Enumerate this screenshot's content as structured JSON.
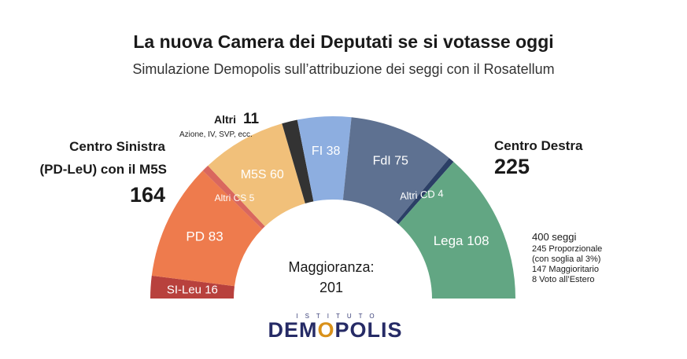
{
  "title": "La nuova Camera dei Deputati se si votasse oggi",
  "subtitle": "Simulazione Demopolis sull’attribuzione dei seggi con il Rosatellum",
  "blocks": {
    "left": {
      "line1": "Centro Sinistra",
      "line2": "(PD-LeU) con il M5S",
      "total": "164"
    },
    "right": {
      "line1": "Centro Destra",
      "total": "225"
    },
    "altri": {
      "label": "Altri",
      "total": "11",
      "note": "Azione, IV, SVP, ecc."
    }
  },
  "majority": {
    "label": "Maggioranza:",
    "value": "201"
  },
  "info": {
    "total": "400 seggi",
    "lines": [
      "245 Proporzionale",
      "(con soglia al 3%)",
      "147 Maggioritario",
      "8 Voto all’Estero"
    ]
  },
  "logo": {
    "top": "ISTITUTO",
    "pre": "DEM",
    "o": "O",
    "post": "POLIS"
  },
  "chart_data": {
    "type": "pie",
    "subtype": "parliament-semicircle",
    "title": "La nuova Camera dei Deputati se si votasse oggi",
    "subtitle": "Simulazione Demopolis sull’attribuzione dei seggi con il Rosatellum",
    "total_seats": 400,
    "segments": [
      {
        "label": "SI-Leu",
        "value": 16,
        "display": "SI-Leu  16",
        "color": "#b8413d",
        "group": "Centro Sinistra"
      },
      {
        "label": "PD",
        "value": 83,
        "display": "PD 83",
        "color": "#ee7b4d",
        "group": "Centro Sinistra"
      },
      {
        "label": "Altri CS",
        "value": 5,
        "display": "Altri CS 5",
        "color": "#d9675e",
        "group": "Centro Sinistra"
      },
      {
        "label": "M5S",
        "value": 60,
        "display": "M5S  60",
        "color": "#f1c07a",
        "group": "Centro Sinistra"
      },
      {
        "label": "Altri",
        "value": 11,
        "display": "",
        "color": "#333333",
        "group": "Altri"
      },
      {
        "label": "FI",
        "value": 38,
        "display": "FI 38",
        "color": "#8daee0",
        "group": "Centro Destra"
      },
      {
        "label": "FdI",
        "value": 75,
        "display": "FdI  75",
        "color": "#5e7191",
        "group": "Centro Destra"
      },
      {
        "label": "Altri CD",
        "value": 4,
        "display": "Altri CD 4",
        "color": "#2b3f66",
        "group": "Centro Destra"
      },
      {
        "label": "Lega",
        "value": 108,
        "display": "Lega  108",
        "color": "#62a683",
        "group": "Centro Destra"
      }
    ]
  }
}
